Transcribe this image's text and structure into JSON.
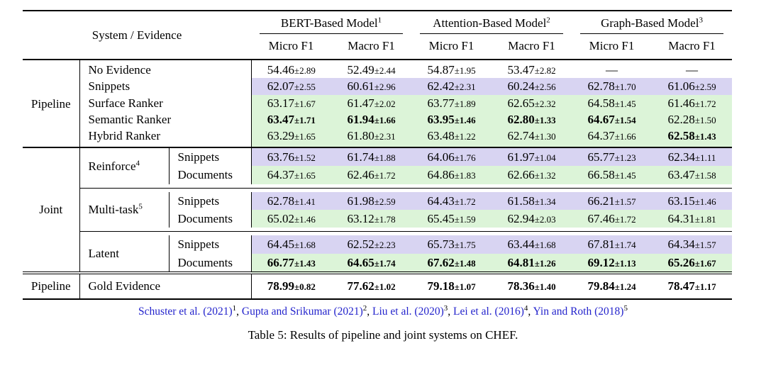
{
  "header": {
    "system_evidence": "System / Evidence",
    "models": [
      {
        "name": "BERT-Based Model",
        "sup": "1"
      },
      {
        "name": "Attention-Based Model",
        "sup": "2"
      },
      {
        "name": "Graph-Based Model",
        "sup": "3"
      }
    ],
    "metrics": [
      "Micro F1",
      "Macro F1"
    ]
  },
  "colors": {
    "row_snippets": "#d8d4f2",
    "row_documents": "#dcf4d8",
    "citation": "#2323cc"
  },
  "plus_minus": "±",
  "dash": "—",
  "pipeline": {
    "group": "Pipeline",
    "rows": [
      {
        "evidence": "No Evidence",
        "bg": "none",
        "cells": [
          {
            "m": "54.46",
            "s": "2.89"
          },
          {
            "m": "52.49",
            "s": "2.44"
          },
          {
            "m": "54.87",
            "s": "1.95"
          },
          {
            "m": "53.47",
            "s": "2.82"
          },
          {
            "dash": true
          },
          {
            "dash": true
          }
        ]
      },
      {
        "evidence": "Snippets",
        "bg": "purple",
        "cells": [
          {
            "m": "62.07",
            "s": "2.55"
          },
          {
            "m": "60.61",
            "s": "2.96"
          },
          {
            "m": "62.42",
            "s": "2.31"
          },
          {
            "m": "60.24",
            "s": "2.56"
          },
          {
            "m": "62.78",
            "s": "1.70"
          },
          {
            "m": "61.06",
            "s": "2.59"
          }
        ]
      },
      {
        "evidence": "Surface Ranker",
        "bg": "green",
        "cells": [
          {
            "m": "63.17",
            "s": "1.67"
          },
          {
            "m": "61.47",
            "s": "2.02"
          },
          {
            "m": "63.77",
            "s": "1.89"
          },
          {
            "m": "62.65",
            "s": "2.32"
          },
          {
            "m": "64.58",
            "s": "1.45"
          },
          {
            "m": "61.46",
            "s": "1.72"
          }
        ]
      },
      {
        "evidence": "Semantic Ranker",
        "bg": "green",
        "cells": [
          {
            "m": "63.47",
            "s": "1.71",
            "b": true
          },
          {
            "m": "61.94",
            "s": "1.66",
            "b": true
          },
          {
            "m": "63.95",
            "s": "1.46",
            "b": true
          },
          {
            "m": "62.80",
            "s": "1.33",
            "b": true
          },
          {
            "m": "64.67",
            "s": "1.54",
            "b": true
          },
          {
            "m": "62.28",
            "s": "1.50"
          }
        ]
      },
      {
        "evidence": "Hybrid Ranker",
        "bg": "green",
        "cells": [
          {
            "m": "63.29",
            "s": "1.65"
          },
          {
            "m": "61.80",
            "s": "2.31"
          },
          {
            "m": "63.48",
            "s": "1.22"
          },
          {
            "m": "62.74",
            "s": "1.30"
          },
          {
            "m": "64.37",
            "s": "1.66"
          },
          {
            "m": "62.58",
            "s": "1.43",
            "b": true
          }
        ]
      }
    ]
  },
  "joint": {
    "group": "Joint",
    "subgroups": [
      {
        "method": "Reinforce",
        "sup": "4",
        "rows": [
          {
            "evidence": "Snippets",
            "bg": "purple",
            "cells": [
              {
                "m": "63.76",
                "s": "1.52"
              },
              {
                "m": "61.74",
                "s": "1.88"
              },
              {
                "m": "64.06",
                "s": "1.76"
              },
              {
                "m": "61.97",
                "s": "1.04"
              },
              {
                "m": "65.77",
                "s": "1.23"
              },
              {
                "m": "62.34",
                "s": "1.11"
              }
            ]
          },
          {
            "evidence": "Documents",
            "bg": "green",
            "cells": [
              {
                "m": "64.37",
                "s": "1.65"
              },
              {
                "m": "62.46",
                "s": "1.72"
              },
              {
                "m": "64.86",
                "s": "1.83"
              },
              {
                "m": "62.66",
                "s": "1.32"
              },
              {
                "m": "66.58",
                "s": "1.45"
              },
              {
                "m": "63.47",
                "s": "1.58"
              }
            ]
          }
        ]
      },
      {
        "method": "Multi-task",
        "sup": "5",
        "rows": [
          {
            "evidence": "Snippets",
            "bg": "purple",
            "cells": [
              {
                "m": "62.78",
                "s": "1.41"
              },
              {
                "m": "61.98",
                "s": "2.59"
              },
              {
                "m": "64.43",
                "s": "1.72"
              },
              {
                "m": "61.58",
                "s": "1.34"
              },
              {
                "m": "66.21",
                "s": "1.57"
              },
              {
                "m": "63.15",
                "s": "1.46"
              }
            ]
          },
          {
            "evidence": "Documents",
            "bg": "green",
            "cells": [
              {
                "m": "65.02",
                "s": "1.46"
              },
              {
                "m": "63.12",
                "s": "1.78"
              },
              {
                "m": "65.45",
                "s": "1.59"
              },
              {
                "m": "62.94",
                "s": "2.03"
              },
              {
                "m": "67.46",
                "s": "1.72"
              },
              {
                "m": "64.31",
                "s": "1.81"
              }
            ]
          }
        ]
      },
      {
        "method": "Latent",
        "sup": "",
        "rows": [
          {
            "evidence": "Snippets",
            "bg": "purple",
            "cells": [
              {
                "m": "64.45",
                "s": "1.68"
              },
              {
                "m": "62.52",
                "s": "2.23"
              },
              {
                "m": "65.73",
                "s": "1.75"
              },
              {
                "m": "63.44",
                "s": "1.68"
              },
              {
                "m": "67.81",
                "s": "1.74"
              },
              {
                "m": "64.34",
                "s": "1.57"
              }
            ]
          },
          {
            "evidence": "Documents",
            "bg": "green",
            "cells": [
              {
                "m": "66.77",
                "s": "1.43",
                "b": true
              },
              {
                "m": "64.65",
                "s": "1.74",
                "b": true
              },
              {
                "m": "67.62",
                "s": "1.48",
                "b": true
              },
              {
                "m": "64.81",
                "s": "1.26",
                "b": true
              },
              {
                "m": "69.12",
                "s": "1.13",
                "b": true
              },
              {
                "m": "65.26",
                "s": "1.67",
                "b": true
              }
            ]
          }
        ]
      }
    ]
  },
  "gold": {
    "group": "Pipeline",
    "evidence": "Gold Evidence",
    "cells": [
      {
        "m": "78.99",
        "s": "0.82",
        "b": true
      },
      {
        "m": "77.62",
        "s": "1.02",
        "b": true
      },
      {
        "m": "79.18",
        "s": "1.07",
        "b": true
      },
      {
        "m": "78.36",
        "s": "1.40",
        "b": true
      },
      {
        "m": "79.84",
        "s": "1.24",
        "b": true
      },
      {
        "m": "78.47",
        "s": "1.17",
        "b": true
      }
    ]
  },
  "footnotes": {
    "separator": ", ",
    "citations": [
      {
        "text": "Schuster et al. (2021)",
        "sup": "1"
      },
      {
        "text": "Gupta and Srikumar (2021)",
        "sup": "2"
      },
      {
        "text": "Liu et al. (2020)",
        "sup": "3"
      },
      {
        "text": "Lei et al. (2016)",
        "sup": "4"
      },
      {
        "text": "Yin and Roth (2018)",
        "sup": "5"
      }
    ]
  },
  "caption": "Table 5: Results of pipeline and joint systems on CHEF."
}
